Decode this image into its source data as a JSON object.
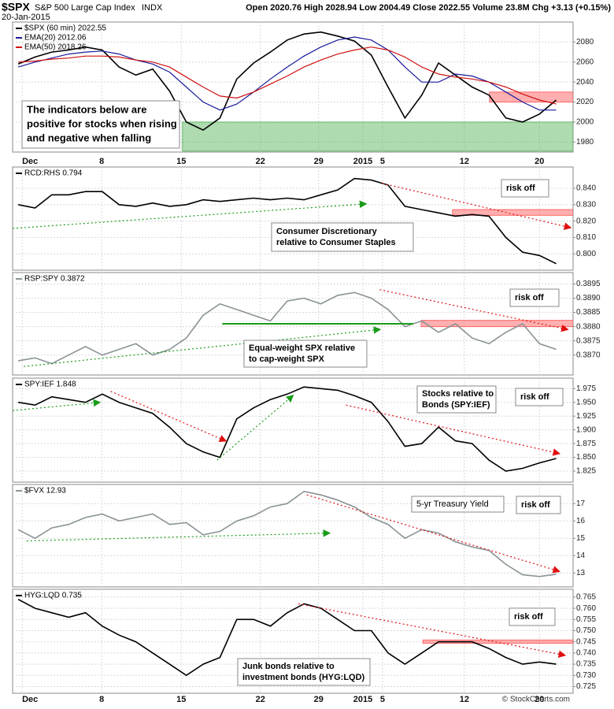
{
  "header": {
    "symbol": "$SPX",
    "name": "S&P 500 Large Cap Index",
    "exchange": "INDX",
    "date": "20-Jan-2015",
    "quote": "Open 2020.76 High 2028.94 Low 2004.49 Close 2022.55 Volume 23.8M Chg +3.13 (+0.15%)",
    "copyright": "© StockCharts.com"
  },
  "chart_data": [
    {
      "type": "line",
      "x": [
        1,
        4,
        7,
        10,
        13,
        16,
        19,
        22,
        25,
        28,
        31,
        34,
        37,
        40,
        43,
        46,
        49,
        52,
        55,
        58,
        61,
        64,
        67,
        70,
        73,
        76,
        79,
        82,
        85,
        88,
        91,
        94,
        97
      ],
      "xlim": [
        0,
        100
      ],
      "xticks": [
        {
          "value": 1.7,
          "label": "Dec"
        },
        {
          "value": 15.9,
          "label": "8"
        },
        {
          "value": 30.1,
          "label": "15"
        },
        {
          "value": 44.2,
          "label": "22"
        },
        {
          "value": 54.6,
          "label": "29"
        },
        {
          "value": 62.5,
          "label": "2015"
        },
        {
          "value": 66,
          "label": "5"
        },
        {
          "value": 80.6,
          "label": "12"
        },
        {
          "value": 94,
          "label": "20"
        }
      ],
      "ylim": [
        1970,
        2100
      ],
      "yticks": [
        1980,
        2000,
        2020,
        2040,
        2060,
        2080
      ],
      "grid": true,
      "series": [
        {
          "name": "$SPX (60 min) 2022.55",
          "color": "#000000",
          "values": [
            2058,
            2065,
            2070,
            2072,
            2075,
            2072,
            2055,
            2047,
            2053,
            2031,
            2000,
            1992,
            2004,
            2043,
            2059,
            2070,
            2082,
            2088,
            2090,
            2086,
            2081,
            2067,
            2035,
            2004,
            2027,
            2059,
            2047,
            2035,
            2027,
            2004,
            2000,
            2008,
            2022
          ]
        },
        {
          "name": "EMA(20) 2012.06",
          "color": "#1a1a9c",
          "values": [
            2055,
            2060,
            2064,
            2068,
            2070,
            2071,
            2068,
            2062,
            2058,
            2050,
            2035,
            2020,
            2012,
            2018,
            2030,
            2043,
            2055,
            2066,
            2075,
            2082,
            2085,
            2082,
            2072,
            2055,
            2040,
            2040,
            2048,
            2046,
            2040,
            2030,
            2020,
            2012,
            2012
          ]
        },
        {
          "name": "EMA(50) 2018.26",
          "color": "#d01010",
          "values": [
            2060,
            2061,
            2063,
            2064,
            2066,
            2066,
            2065,
            2062,
            2060,
            2055,
            2045,
            2035,
            2026,
            2024,
            2030,
            2038,
            2046,
            2055,
            2062,
            2068,
            2072,
            2075,
            2072,
            2065,
            2055,
            2048,
            2045,
            2043,
            2040,
            2035,
            2028,
            2022,
            2018
          ]
        }
      ],
      "bands": [
        {
          "x": [
            30.3,
            100
          ],
          "y": [
            1971,
            2000
          ],
          "color": "#4caf50"
        },
        {
          "x": [
            85.1,
            100
          ],
          "y": [
            2020,
            2030
          ],
          "color": "#ff4d4d"
        }
      ],
      "trendlines": [],
      "notes": [
        {
          "lines": [
            "The indicators below are",
            "positive for stocks when rising",
            "and negative when falling"
          ],
          "color": "#000000"
        }
      ]
    },
    {
      "type": "line",
      "x": [
        1,
        4,
        7,
        10,
        13,
        16,
        19,
        22,
        25,
        28,
        31,
        34,
        37,
        40,
        43,
        46,
        49,
        52,
        55,
        58,
        61,
        64,
        67,
        70,
        73,
        76,
        79,
        82,
        85,
        88,
        91,
        94,
        97
      ],
      "xlim": [
        0,
        100
      ],
      "xticks": [
        1.7,
        15.9,
        30.1,
        44.2,
        54.6,
        62.5,
        66,
        80.6,
        94
      ],
      "ylim": [
        0.79,
        0.853
      ],
      "yticks": [
        {
          "value": 0.8,
          "label": "0.800"
        },
        {
          "value": 0.81,
          "label": "0.810"
        },
        {
          "value": 0.82,
          "label": "0.820"
        },
        {
          "value": 0.83,
          "label": "0.830"
        },
        {
          "value": 0.84,
          "label": "0.840"
        }
      ],
      "grid": true,
      "series": [
        {
          "name": "RCD:RHS 0.794",
          "color": "#000000",
          "values": [
            0.83,
            0.828,
            0.836,
            0.836,
            0.838,
            0.838,
            0.83,
            0.829,
            0.831,
            0.829,
            0.83,
            0.833,
            0.832,
            0.833,
            0.834,
            0.833,
            0.834,
            0.833,
            0.836,
            0.839,
            0.846,
            0.845,
            0.842,
            0.829,
            0.827,
            0.825,
            0.823,
            0.824,
            0.823,
            0.81,
            0.801,
            0.799,
            0.794
          ]
        }
      ],
      "bands": [
        {
          "x": [
            78.5,
            100
          ],
          "y": [
            0.8235,
            0.827
          ],
          "color": "#ff4d4d"
        }
      ],
      "trendlines": [
        {
          "x": [
            0,
            63
          ],
          "y": [
            0.8155,
            0.8305
          ],
          "color": "#1a9c1a",
          "style": "dotted-arrow"
        },
        {
          "x": [
            66,
            99.5
          ],
          "y": [
            0.843,
            0.816
          ],
          "color": "#e01010",
          "style": "dotted-arrow"
        }
      ],
      "notes": [
        {
          "lines": [
            "risk off"
          ],
          "color": "#e00000"
        },
        {
          "lines": [
            "Consumer Discretionary",
            "relative to Consumer Staples"
          ],
          "color": "#000000"
        }
      ]
    },
    {
      "type": "line",
      "x": [
        1,
        4,
        7,
        10,
        13,
        16,
        19,
        22,
        25,
        28,
        31,
        34,
        37,
        40,
        43,
        46,
        49,
        52,
        55,
        58,
        61,
        64,
        67,
        70,
        73,
        76,
        79,
        82,
        85,
        88,
        91,
        94,
        97
      ],
      "xlim": [
        0,
        100
      ],
      "xticks": [
        1.7,
        15.9,
        30.1,
        44.2,
        54.6,
        62.5,
        66,
        80.6,
        94
      ],
      "ylim": [
        0.3863,
        0.3899
      ],
      "yticks": [
        {
          "value": 0.387,
          "label": "0.3870"
        },
        0.3875,
        {
          "value": 0.388,
          "label": "0.3880"
        },
        0.3885,
        {
          "value": 0.389,
          "label": "0.3890"
        },
        0.3895
      ],
      "grid": true,
      "series": [
        {
          "name": "RSP:SPY 0.3872",
          "color": "#8a9396",
          "values": [
            0.3868,
            0.3869,
            0.3867,
            0.387,
            0.3873,
            0.387,
            0.3872,
            0.3874,
            0.387,
            0.3872,
            0.3876,
            0.3884,
            0.3888,
            0.3886,
            0.3884,
            0.3882,
            0.3889,
            0.389,
            0.3888,
            0.3891,
            0.3892,
            0.389,
            0.3886,
            0.388,
            0.3882,
            0.3878,
            0.3881,
            0.3876,
            0.3874,
            0.3878,
            0.3881,
            0.3874,
            0.3872
          ]
        }
      ],
      "bands": [
        {
          "x": [
            72.9,
            100
          ],
          "y": [
            0.388,
            0.38822
          ],
          "color": "#ff4d4d"
        }
      ],
      "trendlines": [
        {
          "x": [
            2,
            65.5
          ],
          "y": [
            0.3866,
            0.3879
          ],
          "color": "#1a9c1a",
          "style": "dotted-arrow"
        },
        {
          "x": [
            65.5,
            99
          ],
          "y": [
            0.3893,
            0.3879
          ],
          "color": "#e01010",
          "style": "dotted-arrow"
        },
        {
          "x": [
            37.4,
            71.5
          ],
          "y": [
            0.3881,
            0.3881
          ],
          "color": "#1a9c1a",
          "style": "solid"
        }
      ],
      "notes": [
        {
          "lines": [
            "risk off"
          ],
          "color": "#e00000"
        },
        {
          "lines": [
            "Equal-weight SPX relative",
            "to cap-weight SPX"
          ],
          "color": "#555555"
        }
      ]
    },
    {
      "type": "line",
      "x": [
        1,
        4,
        7,
        10,
        13,
        16,
        19,
        22,
        25,
        28,
        31,
        34,
        37,
        40,
        43,
        46,
        49,
        52,
        55,
        58,
        61,
        64,
        67,
        70,
        73,
        76,
        79,
        82,
        85,
        88,
        91,
        94,
        97
      ],
      "xlim": [
        0,
        100
      ],
      "xticks": [
        1.7,
        15.9,
        30.1,
        44.2,
        54.6,
        62.5,
        66,
        80.6,
        94
      ],
      "ylim": [
        1.805,
        1.994
      ],
      "yticks": [
        1.825,
        {
          "value": 1.85,
          "label": "1.850"
        },
        1.875,
        {
          "value": 1.9,
          "label": "1.900"
        },
        1.925,
        {
          "value": 1.95,
          "label": "1.950"
        },
        1.975
      ],
      "grid": true,
      "series": [
        {
          "name": "SPY:IEF 1.848",
          "color": "#000000",
          "values": [
            1.95,
            1.945,
            1.96,
            1.955,
            1.95,
            1.965,
            1.95,
            1.94,
            1.93,
            1.905,
            1.875,
            1.86,
            1.85,
            1.92,
            1.94,
            1.955,
            1.965,
            1.978,
            1.975,
            1.972,
            1.962,
            1.95,
            1.915,
            1.87,
            1.875,
            1.905,
            1.88,
            1.875,
            1.845,
            1.825,
            1.83,
            1.84,
            1.848
          ]
        }
      ],
      "bands": [],
      "trendlines": [
        {
          "x": [
            0,
            15.5
          ],
          "y": [
            1.935,
            1.95
          ],
          "color": "#1a9c1a",
          "style": "dotted-arrow"
        },
        {
          "x": [
            17.5,
            38
          ],
          "y": [
            1.97,
            1.88
          ],
          "color": "#e01010",
          "style": "dotted-arrow"
        },
        {
          "x": [
            36.5,
            50
          ],
          "y": [
            1.845,
            1.962
          ],
          "color": "#1a9c1a",
          "style": "dotted-arrow"
        },
        {
          "x": [
            59.5,
            97.5
          ],
          "y": [
            1.945,
            1.857
          ],
          "color": "#e01010",
          "style": "dotted-arrow"
        }
      ],
      "notes": [
        {
          "lines": [
            "Stocks relative to",
            "Bonds (SPY:IEF)"
          ],
          "color": "#000000"
        },
        {
          "lines": [
            "risk off"
          ],
          "color": "#e00000"
        }
      ]
    },
    {
      "type": "line",
      "x": [
        1,
        4,
        7,
        10,
        13,
        16,
        19,
        22,
        25,
        28,
        31,
        34,
        37,
        40,
        43,
        46,
        49,
        52,
        55,
        58,
        61,
        64,
        67,
        70,
        73,
        76,
        79,
        82,
        85,
        88,
        91,
        94,
        97
      ],
      "xlim": [
        0,
        100
      ],
      "xticks": [
        1.7,
        15.9,
        30.1,
        44.2,
        54.6,
        62.5,
        66,
        80.6,
        94
      ],
      "ylim": [
        12.2,
        18.1
      ],
      "yticks": [
        13,
        14,
        15,
        16,
        17
      ],
      "grid": true,
      "series": [
        {
          "name": "$FVX 12.93",
          "color": "#8a9396",
          "values": [
            15.5,
            15.0,
            15.6,
            15.8,
            16.2,
            16.4,
            16.0,
            16.2,
            16.4,
            15.8,
            15.9,
            15.2,
            15.4,
            16.0,
            16.3,
            16.8,
            17.0,
            17.7,
            17.5,
            17.2,
            16.8,
            16.2,
            15.8,
            15.0,
            15.5,
            15.3,
            14.8,
            14.5,
            14.3,
            13.5,
            12.9,
            12.8,
            12.93
          ]
        }
      ],
      "bands": [],
      "trendlines": [
        {
          "x": [
            2.5,
            56.5
          ],
          "y": [
            14.85,
            15.3
          ],
          "color": "#1a9c1a",
          "style": "dotted-arrow"
        },
        {
          "x": [
            52.5,
            97.5
          ],
          "y": [
            17.5,
            13.1
          ],
          "color": "#e01010",
          "style": "dotted-arrow"
        }
      ],
      "notes": [
        {
          "lines": [
            "5-yr Treasury Yield"
          ],
          "color": "#777777"
        },
        {
          "lines": [
            "risk off"
          ],
          "color": "#e00000"
        }
      ]
    },
    {
      "type": "line",
      "x": [
        1,
        4,
        7,
        10,
        13,
        16,
        19,
        22,
        25,
        28,
        31,
        34,
        37,
        40,
        43,
        46,
        49,
        52,
        55,
        58,
        61,
        64,
        67,
        70,
        73,
        76,
        79,
        82,
        85,
        88,
        91,
        94,
        97
      ],
      "xlim": [
        0,
        100
      ],
      "xticks": [
        {
          "value": 1.7,
          "label": "Dec"
        },
        {
          "value": 15.9,
          "label": "8"
        },
        {
          "value": 30.1,
          "label": "15"
        },
        {
          "value": 44.2,
          "label": "22"
        },
        {
          "value": 54.6,
          "label": "29"
        },
        {
          "value": 62.5,
          "label": "2015"
        },
        {
          "value": 66,
          "label": "5"
        },
        {
          "value": 80.6,
          "label": "12"
        },
        {
          "value": 94,
          "label": "20"
        }
      ],
      "ylim": [
        0.722,
        0.7685
      ],
      "yticks": [
        {
          "value": 0.725,
          "label": "0.725"
        },
        {
          "value": 0.73,
          "label": "0.730"
        },
        {
          "value": 0.735,
          "label": "0.735"
        },
        {
          "value": 0.74,
          "label": "0.740"
        },
        {
          "value": 0.745,
          "label": "0.745"
        },
        {
          "value": 0.75,
          "label": "0.750"
        },
        {
          "value": 0.755,
          "label": "0.755"
        },
        {
          "value": 0.76,
          "label": "0.760"
        },
        {
          "value": 0.765,
          "label": "0.765"
        }
      ],
      "grid": true,
      "series": [
        {
          "name": "HYG:LQD 0.735",
          "color": "#000000",
          "values": [
            0.764,
            0.76,
            0.758,
            0.756,
            0.758,
            0.752,
            0.748,
            0.745,
            0.74,
            0.735,
            0.73,
            0.735,
            0.738,
            0.755,
            0.755,
            0.752,
            0.758,
            0.762,
            0.76,
            0.755,
            0.75,
            0.75,
            0.74,
            0.735,
            0.74,
            0.745,
            0.745,
            0.745,
            0.742,
            0.738,
            0.735,
            0.736,
            0.735
          ]
        }
      ],
      "bands": [
        {
          "x": [
            73.2,
            100
          ],
          "y": [
            0.7443,
            0.7458
          ],
          "color": "#ff4d4d"
        }
      ],
      "trendlines": [
        {
          "x": [
            51,
            98.5
          ],
          "y": [
            0.762,
            0.739
          ],
          "color": "#e01010",
          "style": "dotted-arrow"
        }
      ],
      "notes": [
        {
          "lines": [
            "risk off"
          ],
          "color": "#e00000"
        },
        {
          "lines": [
            "Junk bonds relative to",
            "investment bonds (HYG:LQD)"
          ],
          "color": "#000000"
        }
      ]
    }
  ]
}
